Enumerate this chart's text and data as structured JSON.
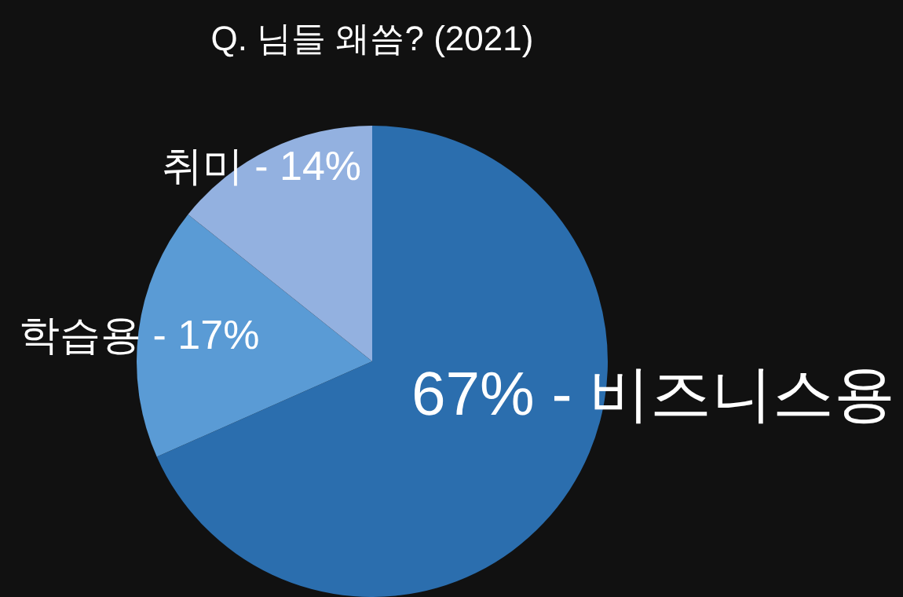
{
  "chart_data": {
    "type": "pie",
    "title": "Q. 님들 왜씀? (2021)",
    "categories": [
      "비즈니스용",
      "학습용",
      "취미"
    ],
    "values": [
      67,
      17,
      14
    ],
    "value_labels": [
      "67%",
      "17%",
      "14%"
    ],
    "annotations": [
      "-",
      "-",
      "-"
    ],
    "colors": [
      "#2b6eae",
      "#5a9bd5",
      "#93b1e0"
    ],
    "legend": false
  }
}
